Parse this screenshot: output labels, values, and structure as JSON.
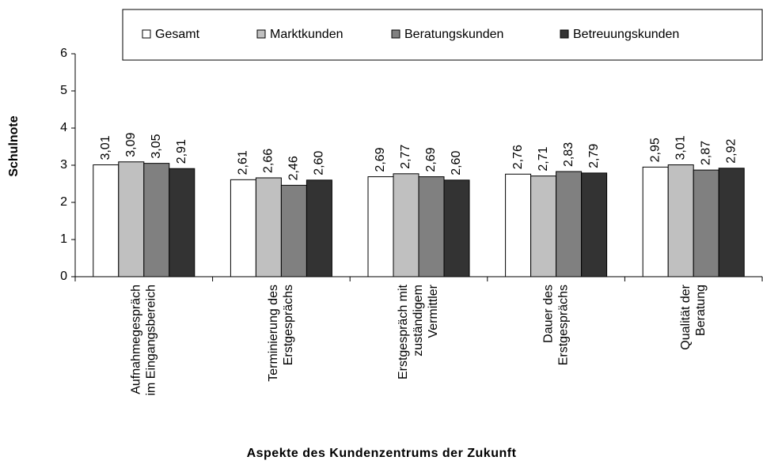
{
  "chart_data": {
    "type": "bar",
    "x_label": "Aspekte des Kundenzentrums der Zukunft",
    "y_label": "Schulnote",
    "categories": [
      [
        "Aufnahmegespräch",
        "im Eingangsbereich"
      ],
      [
        "Terminierung des",
        "Erstgesprächs"
      ],
      [
        "Erstgespräch mit",
        "zuständigem",
        "Vermittler"
      ],
      [
        "Dauer des",
        "Erstgesprächs"
      ],
      [
        "Qualität der",
        "Beratung"
      ]
    ],
    "series": [
      {
        "name": "Gesamt",
        "color": "#ffffff",
        "values": [
          3.01,
          2.61,
          2.69,
          2.76,
          2.95
        ],
        "value_labels": [
          "3,01",
          "2,61",
          "2,69",
          "2,76",
          "2,95"
        ]
      },
      {
        "name": "Marktkunden",
        "color": "#c0c0c0",
        "values": [
          3.09,
          2.66,
          2.77,
          2.71,
          3.01
        ],
        "value_labels": [
          "3,09",
          "2,66",
          "2,77",
          "2,71",
          "3,01"
        ]
      },
      {
        "name": "Beratungskunden",
        "color": "#808080",
        "values": [
          3.05,
          2.46,
          2.69,
          2.83,
          2.87
        ],
        "value_labels": [
          "3,05",
          "2,46",
          "2,69",
          "2,83",
          "2,87"
        ]
      },
      {
        "name": "Betreuungskunden",
        "color": "#333333",
        "values": [
          2.91,
          2.6,
          2.6,
          2.79,
          2.92
        ],
        "value_labels": [
          "2,91",
          "2,60",
          "2,60",
          "2,79",
          "2,92"
        ]
      }
    ],
    "ylim": [
      0,
      6
    ],
    "yticks": [
      0,
      1,
      2,
      3,
      4,
      5,
      6
    ],
    "legend": "top"
  }
}
